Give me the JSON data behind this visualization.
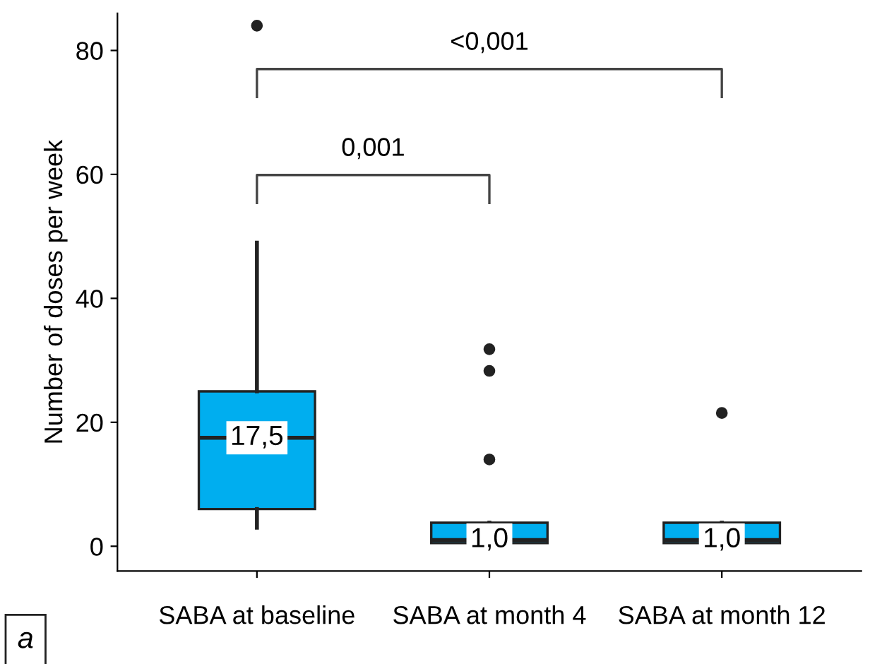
{
  "chart_data": {
    "type": "box",
    "ylabel": "Number of doses per week",
    "categories": [
      "SABA at baseline",
      "SABA at month 4",
      "SABA at month 12"
    ],
    "boxes": [
      {
        "low": 3,
        "q1": 6,
        "median": 17.5,
        "q3": 25,
        "high": 49,
        "outliers": [
          84
        ]
      },
      {
        "low": 0.5,
        "q1": 0.5,
        "median": 1.0,
        "q3": 3.8,
        "high": 3.8,
        "outliers": [
          31.8,
          28.3,
          14
        ]
      },
      {
        "low": 0.5,
        "q1": 0.5,
        "median": 1.0,
        "q3": 3.8,
        "high": 3.8,
        "outliers": [
          21.5
        ]
      }
    ],
    "value_labels": [
      "17,5",
      "1,0",
      "1,0"
    ],
    "color": "#00aeef",
    "ylim": [
      -4,
      86
    ],
    "yticks": [
      0,
      20,
      40,
      60,
      80
    ],
    "annotations": [
      "0,001",
      "<0,001",
      "a"
    ],
    "grid": false
  }
}
